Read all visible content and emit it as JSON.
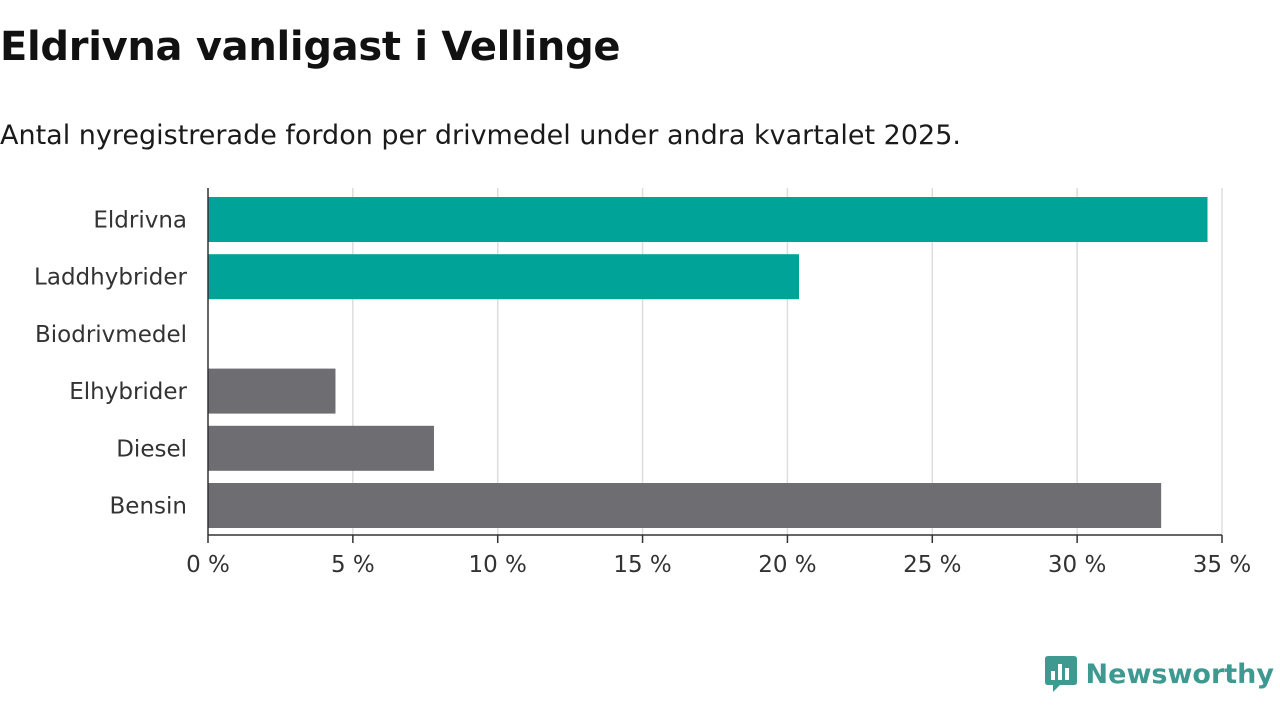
{
  "header": {
    "title": "Eldrivna vanligast i Vellinge",
    "subtitle": "Antal nyregistrerade fordon per drivmedel under andra kvartalet 2025."
  },
  "branding": {
    "name": "Newsworthy",
    "icon": "newsworthy-logo-icon"
  },
  "colors": {
    "highlight": "#00a398",
    "muted": "#6e6d72",
    "grid": "#dddddd",
    "axis": "#333333",
    "brand": "#3e9a91"
  },
  "chart_data": {
    "type": "bar",
    "orientation": "horizontal",
    "categories": [
      "Eldrivna",
      "Laddhybrider",
      "Biodrivmedel",
      "Elhybrider",
      "Diesel",
      "Bensin"
    ],
    "values": [
      34.5,
      20.4,
      0,
      4.4,
      7.8,
      32.9
    ],
    "bar_colors": [
      "#00a398",
      "#00a398",
      "#6e6d72",
      "#6e6d72",
      "#6e6d72",
      "#6e6d72"
    ],
    "xlim": [
      0,
      35
    ],
    "x_ticks": [
      0,
      5,
      10,
      15,
      20,
      25,
      30,
      35
    ],
    "x_tick_labels": [
      "0 %",
      "5 %",
      "10 %",
      "15 %",
      "20 %",
      "25 %",
      "30 %",
      "35 %"
    ],
    "grid": true,
    "legend": false,
    "title": "Eldrivna vanligast i Vellinge",
    "subtitle": "Antal nyregistrerade fordon per drivmedel under andra kvartalet 2025.",
    "xlabel": "",
    "ylabel": ""
  }
}
